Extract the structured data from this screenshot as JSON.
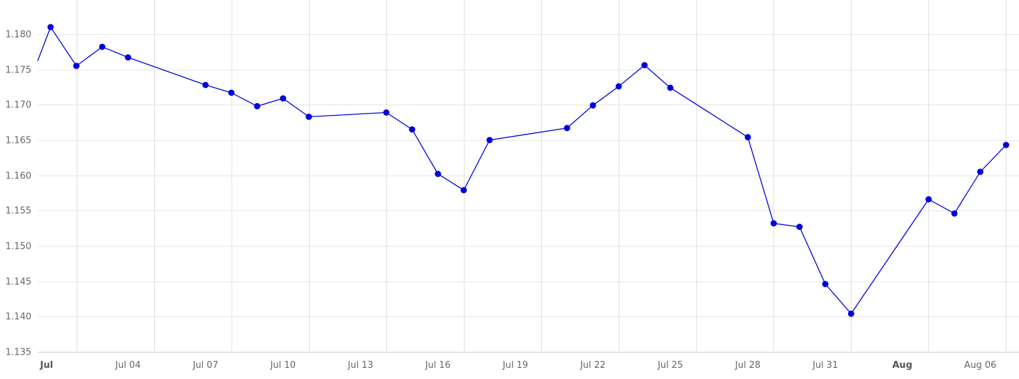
{
  "chart_data": {
    "type": "line",
    "title": "",
    "xlabel": "",
    "ylabel": "",
    "ylim": [
      1.135,
      1.185
    ],
    "xlim": [
      "2021-06-30T12:00",
      "2021-08-07T12:00"
    ],
    "grid": true,
    "legend": "none",
    "y_ticks": [
      "1.135",
      "1.140",
      "1.145",
      "1.150",
      "1.155",
      "1.160",
      "1.165",
      "1.170",
      "1.175",
      "1.180"
    ],
    "x_ticks": [
      {
        "date": "2021-07-01",
        "label": "Jul",
        "bold": true
      },
      {
        "date": "2021-07-04",
        "label": "Jul 04",
        "bold": false
      },
      {
        "date": "2021-07-07",
        "label": "Jul 07",
        "bold": false
      },
      {
        "date": "2021-07-10",
        "label": "Jul 10",
        "bold": false
      },
      {
        "date": "2021-07-13",
        "label": "Jul 13",
        "bold": false
      },
      {
        "date": "2021-07-16",
        "label": "Jul 16",
        "bold": false
      },
      {
        "date": "2021-07-19",
        "label": "Jul 19",
        "bold": false
      },
      {
        "date": "2021-07-22",
        "label": "Jul 22",
        "bold": false
      },
      {
        "date": "2021-07-25",
        "label": "Jul 25",
        "bold": false
      },
      {
        "date": "2021-07-28",
        "label": "Jul 28",
        "bold": false
      },
      {
        "date": "2021-07-31",
        "label": "Jul 31",
        "bold": false
      },
      {
        "date": "2021-08-03",
        "label": "Aug",
        "bold": true
      },
      {
        "date": "2021-08-06",
        "label": "Aug 06",
        "bold": false
      }
    ],
    "x_grid_dates": [
      "2021-07-02",
      "2021-07-05",
      "2021-07-08",
      "2021-07-11",
      "2021-07-14",
      "2021-07-17",
      "2021-07-20",
      "2021-07-23",
      "2021-07-26",
      "2021-07-29",
      "2021-08-01",
      "2021-08-04",
      "2021-08-07"
    ],
    "lead_in": {
      "x": "2021-06-30T12:00",
      "y": 1.1762
    },
    "series": [
      {
        "color": "#0000dd",
        "points": [
          {
            "x": "2021-07-01",
            "y": 1.181
          },
          {
            "x": "2021-07-02",
            "y": 1.1755
          },
          {
            "x": "2021-07-03",
            "y": 1.1782
          },
          {
            "x": "2021-07-04",
            "y": 1.1767
          },
          {
            "x": "2021-07-07",
            "y": 1.1728
          },
          {
            "x": "2021-07-08",
            "y": 1.1717
          },
          {
            "x": "2021-07-09",
            "y": 1.1698
          },
          {
            "x": "2021-07-10",
            "y": 1.1709
          },
          {
            "x": "2021-07-11",
            "y": 1.1683
          },
          {
            "x": "2021-07-14",
            "y": 1.1689
          },
          {
            "x": "2021-07-15",
            "y": 1.1665
          },
          {
            "x": "2021-07-16",
            "y": 1.1602
          },
          {
            "x": "2021-07-17",
            "y": 1.1579
          },
          {
            "x": "2021-07-18",
            "y": 1.165
          },
          {
            "x": "2021-07-21",
            "y": 1.1667
          },
          {
            "x": "2021-07-22",
            "y": 1.1699
          },
          {
            "x": "2021-07-23",
            "y": 1.1726
          },
          {
            "x": "2021-07-24",
            "y": 1.1756
          },
          {
            "x": "2021-07-25",
            "y": 1.1724
          },
          {
            "x": "2021-07-28",
            "y": 1.1654
          },
          {
            "x": "2021-07-29",
            "y": 1.1532
          },
          {
            "x": "2021-07-30",
            "y": 1.1527
          },
          {
            "x": "2021-07-31",
            "y": 1.1446
          },
          {
            "x": "2021-08-01",
            "y": 1.1404
          },
          {
            "x": "2021-08-04",
            "y": 1.1566
          },
          {
            "x": "2021-08-05",
            "y": 1.1546
          },
          {
            "x": "2021-08-06",
            "y": 1.1605
          },
          {
            "x": "2021-08-07",
            "y": 1.1643
          }
        ]
      }
    ]
  }
}
